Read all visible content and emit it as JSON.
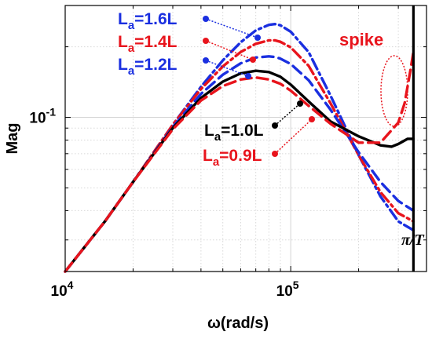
{
  "chart_data": {
    "type": "line",
    "x_scale": "log",
    "y_scale": "log",
    "xlim": [
      10000,
      400000
    ],
    "ylim": [
      0.022,
      0.3
    ],
    "xlabel": "ω(rad/s)",
    "ylabel": "Mag",
    "grid": true,
    "x_ticks": [
      {
        "value": 10000,
        "label": "10",
        "exp": "4"
      },
      {
        "value": 100000,
        "label": "10",
        "exp": "5"
      }
    ],
    "y_ticks": [
      {
        "value": 0.1,
        "label": "10",
        "exp": "-1"
      }
    ],
    "series": [
      {
        "name": "La=1.6L",
        "base": "L",
        "sub": "a",
        "rest": "=1.6L",
        "color": "#1a2fe0",
        "dash": "dashdot",
        "x": [
          10000,
          15000,
          20000,
          30000,
          40000,
          50000,
          60000,
          70000,
          80000,
          85000,
          90000,
          100000,
          120000,
          150000,
          200000,
          250000,
          300000,
          350000
        ],
        "y": [
          0.022,
          0.036,
          0.053,
          0.093,
          0.135,
          0.175,
          0.209,
          0.235,
          0.248,
          0.25,
          0.247,
          0.232,
          0.19,
          0.124,
          0.069,
          0.046,
          0.036,
          0.033
        ]
      },
      {
        "name": "La=1.4L",
        "base": "L",
        "sub": "a",
        "rest": "=1.4L",
        "color": "#e8141c",
        "dash": "dashdot",
        "x": [
          10000,
          15000,
          20000,
          30000,
          40000,
          50000,
          60000,
          70000,
          80000,
          85000,
          90000,
          100000,
          120000,
          150000,
          200000,
          250000,
          300000,
          350000
        ],
        "y": [
          0.022,
          0.036,
          0.053,
          0.093,
          0.132,
          0.165,
          0.19,
          0.206,
          0.213,
          0.213,
          0.21,
          0.199,
          0.166,
          0.115,
          0.069,
          0.048,
          0.039,
          0.036
        ]
      },
      {
        "name": "La=1.2L",
        "base": "L",
        "sub": "a",
        "rest": "=1.2L",
        "color": "#1a2fe0",
        "dash": "dash",
        "x": [
          10000,
          15000,
          20000,
          30000,
          40000,
          50000,
          60000,
          70000,
          80000,
          85000,
          90000,
          100000,
          120000,
          150000,
          200000,
          250000,
          300000,
          350000
        ],
        "y": [
          0.022,
          0.036,
          0.053,
          0.091,
          0.126,
          0.152,
          0.17,
          0.18,
          0.182,
          0.181,
          0.178,
          0.169,
          0.144,
          0.108,
          0.071,
          0.053,
          0.044,
          0.04
        ]
      },
      {
        "name": "La=1.0L",
        "base": "L",
        "sub": "a",
        "rest": "=1.0L",
        "color": "#000000",
        "dash": "solid",
        "x": [
          10000,
          15000,
          20000,
          30000,
          40000,
          50000,
          60000,
          70000,
          80000,
          90000,
          100000,
          120000,
          150000,
          200000,
          250000,
          280000,
          300000,
          330000,
          350000
        ],
        "y": [
          0.022,
          0.036,
          0.053,
          0.09,
          0.121,
          0.142,
          0.154,
          0.158,
          0.156,
          0.149,
          0.138,
          0.117,
          0.096,
          0.083,
          0.076,
          0.075,
          0.077,
          0.081,
          0.081
        ]
      },
      {
        "name": "La=0.9L",
        "base": "L",
        "sub": "a",
        "rest": "=0.9L",
        "color": "#e8141c",
        "dash": "dash",
        "x": [
          10000,
          15000,
          20000,
          30000,
          40000,
          50000,
          60000,
          70000,
          80000,
          90000,
          100000,
          120000,
          150000,
          200000,
          250000,
          300000,
          320000,
          340000,
          350000
        ],
        "y": [
          0.022,
          0.036,
          0.053,
          0.089,
          0.118,
          0.136,
          0.145,
          0.148,
          0.145,
          0.139,
          0.13,
          0.112,
          0.094,
          0.078,
          0.078,
          0.095,
          0.115,
          0.16,
          0.19
        ]
      }
    ],
    "vertical_line": {
      "x": 350000,
      "label": "π/T"
    },
    "annotations": [
      {
        "text": "spike",
        "color": "#e8141c"
      }
    ]
  }
}
